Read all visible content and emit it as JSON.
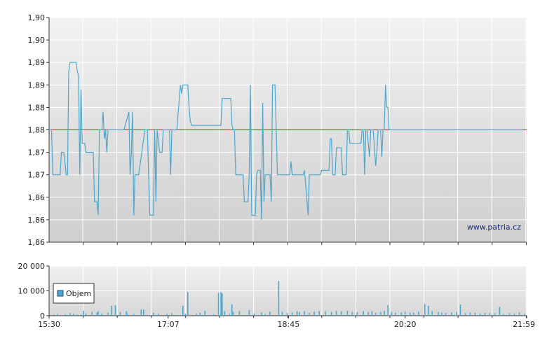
{
  "chart_data": [
    {
      "type": "line",
      "title": "",
      "xlabel": "",
      "ylabel": "",
      "ylim": [
        1.855,
        1.905
      ],
      "yticks": [
        {
          "value": 1.855,
          "label": "1,86"
        },
        {
          "value": 1.86,
          "label": "1,86"
        },
        {
          "value": 1.865,
          "label": "1,86"
        },
        {
          "value": 1.87,
          "label": "1,87"
        },
        {
          "value": 1.875,
          "label": "1,87"
        },
        {
          "value": 1.88,
          "label": "1,88"
        },
        {
          "value": 1.885,
          "label": "1,88"
        },
        {
          "value": 1.89,
          "label": "1,89"
        },
        {
          "value": 1.895,
          "label": "1,89"
        },
        {
          "value": 1.9,
          "label": "1,90"
        },
        {
          "value": 1.905,
          "label": "1,90"
        }
      ],
      "xlim": [
        "15:30",
        "21:59"
      ],
      "grid": true,
      "reference_line": {
        "value": 1.88,
        "color": "#dd2222"
      },
      "series": [
        {
          "color": "#4da6cc",
          "points": [
            [
              "15:30",
              1.88
            ],
            [
              "15:32",
              1.88
            ],
            [
              "15:33",
              1.87
            ],
            [
              "15:39",
              1.87
            ],
            [
              "15:40",
              1.875
            ],
            [
              "15:42",
              1.875
            ],
            [
              "15:44",
              1.87
            ],
            [
              "15:45",
              1.87
            ],
            [
              "15:46",
              1.893
            ],
            [
              "15:47",
              1.895
            ],
            [
              "15:52",
              1.895
            ],
            [
              "15:53",
              1.893
            ],
            [
              "15:54",
              1.892
            ],
            [
              "15:55",
              1.87
            ],
            [
              "15:56",
              1.889
            ],
            [
              "15:57",
              1.877
            ],
            [
              "15:59",
              1.877
            ],
            [
              "16:00",
              1.875
            ],
            [
              "16:06",
              1.875
            ],
            [
              "16:07",
              1.864
            ],
            [
              "16:09",
              1.864
            ],
            [
              "16:10",
              1.861
            ],
            [
              "16:11",
              1.88
            ],
            [
              "16:13",
              1.88
            ],
            [
              "16:14",
              1.884
            ],
            [
              "16:15",
              1.878
            ],
            [
              "16:16",
              1.88
            ],
            [
              "16:17",
              1.875
            ],
            [
              "16:18",
              1.88
            ],
            [
              "16:31",
              1.88
            ],
            [
              "16:35",
              1.884
            ],
            [
              "16:36",
              1.87
            ],
            [
              "16:37",
              1.875
            ],
            [
              "16:38",
              1.884
            ],
            [
              "16:39",
              1.861
            ],
            [
              "16:40",
              1.87
            ],
            [
              "16:43",
              1.87
            ],
            [
              "16:48",
              1.88
            ],
            [
              "16:50",
              1.88
            ],
            [
              "16:52",
              1.861
            ],
            [
              "16:55",
              1.861
            ],
            [
              "16:56",
              1.88
            ],
            [
              "16:57",
              1.864
            ],
            [
              "16:58",
              1.88
            ],
            [
              "17:00",
              1.875
            ],
            [
              "17:02",
              1.875
            ],
            [
              "17:03",
              1.88
            ],
            [
              "17:08",
              1.88
            ],
            [
              "17:09",
              1.87
            ],
            [
              "17:10",
              1.88
            ],
            [
              "17:14",
              1.88
            ],
            [
              "17:17",
              1.89
            ],
            [
              "17:18",
              1.888
            ],
            [
              "17:19",
              1.89
            ],
            [
              "17:23",
              1.89
            ],
            [
              "17:24",
              1.885
            ],
            [
              "17:25",
              1.882
            ],
            [
              "17:26",
              1.881
            ],
            [
              "17:50",
              1.881
            ],
            [
              "17:51",
              1.887
            ],
            [
              "17:58",
              1.887
            ],
            [
              "17:59",
              1.881
            ],
            [
              "18:00",
              1.88
            ],
            [
              "18:01",
              1.88
            ],
            [
              "18:02",
              1.87
            ],
            [
              "18:08",
              1.87
            ],
            [
              "18:09",
              1.864
            ],
            [
              "18:12",
              1.864
            ],
            [
              "18:13",
              1.87
            ],
            [
              "18:14",
              1.89
            ],
            [
              "18:15",
              1.861
            ],
            [
              "18:18",
              1.861
            ],
            [
              "18:19",
              1.87
            ],
            [
              "18:20",
              1.871
            ],
            [
              "18:22",
              1.871
            ],
            [
              "18:23",
              1.86
            ],
            [
              "18:24",
              1.886
            ],
            [
              "18:25",
              1.864
            ],
            [
              "18:26",
              1.87
            ],
            [
              "18:30",
              1.87
            ],
            [
              "18:31",
              1.864
            ],
            [
              "18:32",
              1.89
            ],
            [
              "18:34",
              1.89
            ],
            [
              "18:35",
              1.88
            ],
            [
              "18:36",
              1.87
            ],
            [
              "18:46",
              1.87
            ],
            [
              "18:47",
              1.873
            ],
            [
              "18:48",
              1.87
            ],
            [
              "18:57",
              1.87
            ],
            [
              "18:58",
              1.871
            ],
            [
              "19:01",
              1.861
            ],
            [
              "19:02",
              1.87
            ],
            [
              "19:11",
              1.87
            ],
            [
              "19:12",
              1.871
            ],
            [
              "19:18",
              1.871
            ],
            [
              "19:19",
              1.878
            ],
            [
              "19:20",
              1.878
            ],
            [
              "19:21",
              1.87
            ],
            [
              "19:23",
              1.87
            ],
            [
              "19:24",
              1.876
            ],
            [
              "19:28",
              1.876
            ],
            [
              "19:29",
              1.87
            ],
            [
              "19:32",
              1.87
            ],
            [
              "19:33",
              1.88
            ],
            [
              "19:34",
              1.88
            ],
            [
              "19:35",
              1.877
            ],
            [
              "19:37",
              1.877
            ],
            [
              "19:44",
              1.877
            ],
            [
              "19:45",
              1.88
            ],
            [
              "19:46",
              1.88
            ],
            [
              "19:47",
              1.87
            ],
            [
              "19:48",
              1.88
            ],
            [
              "19:49",
              1.88
            ],
            [
              "19:51",
              1.874
            ],
            [
              "19:52",
              1.88
            ],
            [
              "19:54",
              1.88
            ],
            [
              "19:56",
              1.872
            ],
            [
              "19:57",
              1.875
            ],
            [
              "19:58",
              1.88
            ],
            [
              "20:00",
              1.88
            ],
            [
              "20:01",
              1.874
            ],
            [
              "20:02",
              1.88
            ],
            [
              "20:03",
              1.88
            ],
            [
              "20:04",
              1.89
            ],
            [
              "20:05",
              1.885
            ],
            [
              "20:06",
              1.885
            ],
            [
              "20:07",
              1.88
            ],
            [
              "20:08",
              1.88
            ]
          ]
        }
      ]
    },
    {
      "type": "bar",
      "title": "",
      "xlabel": "",
      "ylabel": "",
      "ylim": [
        0,
        20000
      ],
      "yticks": [
        {
          "value": 0,
          "label": "0"
        },
        {
          "value": 10000,
          "label": "10 000"
        },
        {
          "value": 20000,
          "label": "20 000"
        }
      ],
      "xticks": [
        "15:30",
        "17:07",
        "18:45",
        "20:20",
        "21:59"
      ],
      "xlim": [
        "15:30",
        "21:59"
      ],
      "grid": true,
      "legend": {
        "position": "left",
        "entries": [
          {
            "name": "Objem",
            "color": "#4da6cc"
          }
        ]
      },
      "series": [
        {
          "name": "Objem",
          "color": "#4da6cc",
          "bars": [
            [
              "15:34",
              500
            ],
            [
              "15:37",
              700
            ],
            [
              "15:43",
              600
            ],
            [
              "15:47",
              1000
            ],
            [
              "15:50",
              800
            ],
            [
              "15:53",
              500
            ],
            [
              "15:58",
              2000
            ],
            [
              "16:00",
              900
            ],
            [
              "16:05",
              1500
            ],
            [
              "16:09",
              1200
            ],
            [
              "16:10",
              1800
            ],
            [
              "16:13",
              900
            ],
            [
              "16:18",
              1200
            ],
            [
              "16:21",
              4000
            ],
            [
              "16:24",
              4200
            ],
            [
              "16:28",
              1500
            ],
            [
              "16:33",
              1800
            ],
            [
              "16:34",
              700
            ],
            [
              "16:39",
              700
            ],
            [
              "16:45",
              2500
            ],
            [
              "16:47",
              2500
            ],
            [
              "16:55",
              1200
            ],
            [
              "16:59",
              800
            ],
            [
              "17:06",
              700
            ],
            [
              "17:10",
              1000
            ],
            [
              "17:19",
              4000
            ],
            [
              "17:21",
              800
            ],
            [
              "17:23",
              9500
            ],
            [
              "17:30",
              800
            ],
            [
              "17:33",
              1200
            ],
            [
              "17:37",
              2000
            ],
            [
              "17:44",
              600
            ],
            [
              "17:48",
              9200
            ],
            [
              "17:50",
              9500
            ],
            [
              "17:51",
              9000
            ],
            [
              "17:53",
              1800
            ],
            [
              "17:57",
              700
            ],
            [
              "17:59",
              4500
            ],
            [
              "18:00",
              1500
            ],
            [
              "18:05",
              1800
            ],
            [
              "18:13",
              2200
            ],
            [
              "18:17",
              900
            ],
            [
              "18:23",
              1300
            ],
            [
              "18:26",
              700
            ],
            [
              "18:30",
              1600
            ],
            [
              "18:37",
              14000
            ],
            [
              "18:40",
              1500
            ],
            [
              "18:44",
              1000
            ],
            [
              "18:48",
              1300
            ],
            [
              "18:52",
              1800
            ],
            [
              "18:54",
              1500
            ],
            [
              "18:58",
              1800
            ],
            [
              "19:02",
              1200
            ],
            [
              "19:06",
              1600
            ],
            [
              "19:10",
              1800
            ],
            [
              "19:15",
              1800
            ],
            [
              "19:20",
              1500
            ],
            [
              "19:24",
              1900
            ],
            [
              "19:28",
              1800
            ],
            [
              "19:33",
              2000
            ],
            [
              "19:37",
              1500
            ],
            [
              "19:41",
              1400
            ],
            [
              "19:46",
              1800
            ],
            [
              "19:50",
              1500
            ],
            [
              "19:53",
              1800
            ],
            [
              "19:56",
              1200
            ],
            [
              "20:00",
              1500
            ],
            [
              "20:03",
              2000
            ],
            [
              "20:06",
              4300
            ],
            [
              "20:09",
              1500
            ],
            [
              "20:12",
              1200
            ],
            [
              "20:17",
              1300
            ],
            [
              "20:20",
              1600
            ],
            [
              "20:24",
              1200
            ],
            [
              "20:27",
              1200
            ],
            [
              "20:31",
              1600
            ],
            [
              "20:36",
              4700
            ],
            [
              "20:39",
              4000
            ],
            [
              "20:42",
              1800
            ],
            [
              "20:47",
              1500
            ],
            [
              "20:50",
              1200
            ],
            [
              "20:53",
              1100
            ],
            [
              "20:58",
              1300
            ],
            [
              "21:02",
              1500
            ],
            [
              "21:05",
              4500
            ],
            [
              "21:09",
              1000
            ],
            [
              "21:13",
              1300
            ],
            [
              "21:17",
              1200
            ],
            [
              "21:21",
              900
            ],
            [
              "21:25",
              1100
            ],
            [
              "21:29",
              1000
            ],
            [
              "21:33",
              1000
            ],
            [
              "21:37",
              3500
            ],
            [
              "21:40",
              700
            ],
            [
              "21:45",
              1000
            ],
            [
              "21:49",
              900
            ],
            [
              "21:53",
              1300
            ],
            [
              "21:57",
              800
            ]
          ]
        }
      ]
    }
  ],
  "watermark": "www.patria.cz"
}
